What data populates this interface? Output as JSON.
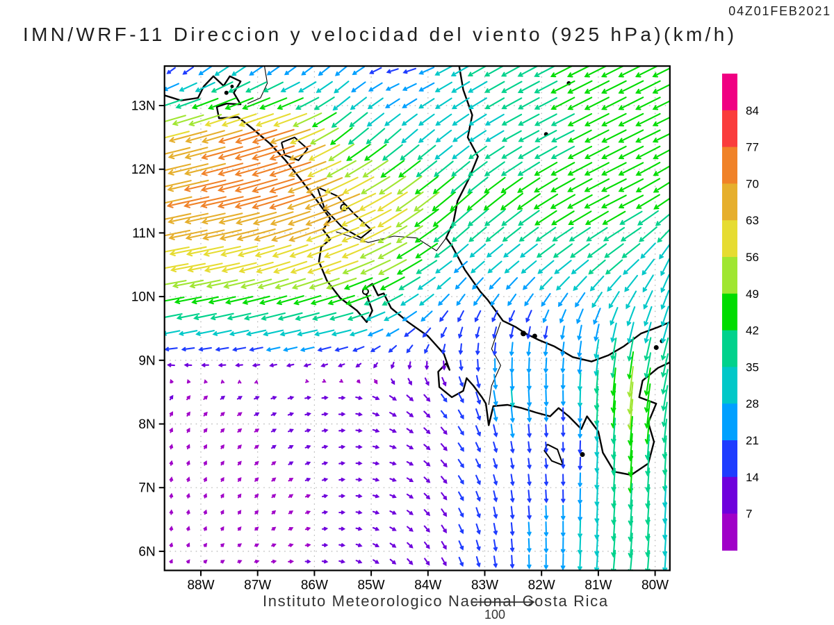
{
  "header": {
    "timestamp": "04Z01FEB2021",
    "title": "IMN/WRF-11 Direccion y velocidad del viento (925 hPa)(km/h)"
  },
  "footer": {
    "caption": "Instituto Meteorologico Nacional Costa Rica",
    "reference_vector_label": "100"
  },
  "chart_data": {
    "type": "vector-field-map",
    "title": "IMN/WRF-11 Direccion y velocidad del viento (925 hPa)(km/h)",
    "valid_time": "04Z01FEB2021",
    "units": "km/h",
    "lon_range": [
      -88.64,
      -79.74
    ],
    "lat_range": [
      5.7,
      13.62
    ],
    "lon_ticks": [
      {
        "lon": -88,
        "label": "88W"
      },
      {
        "lon": -87,
        "label": "87W"
      },
      {
        "lon": -86,
        "label": "86W"
      },
      {
        "lon": -85,
        "label": "85W"
      },
      {
        "lon": -84,
        "label": "84W"
      },
      {
        "lon": -83,
        "label": "83W"
      },
      {
        "lon": -82,
        "label": "82W"
      },
      {
        "lon": -81,
        "label": "81W"
      },
      {
        "lon": -80,
        "label": "80W"
      }
    ],
    "lat_ticks": [
      {
        "lat": 13,
        "label": "13N"
      },
      {
        "lat": 12,
        "label": "12N"
      },
      {
        "lat": 11,
        "label": "11N"
      },
      {
        "lat": 10,
        "label": "10N"
      },
      {
        "lat": 9,
        "label": "9N"
      },
      {
        "lat": 8,
        "label": "8N"
      },
      {
        "lat": 7,
        "label": "7N"
      },
      {
        "lat": 6,
        "label": "6N"
      }
    ],
    "speed_bins_km_h": [
      7,
      14,
      21,
      28,
      35,
      42,
      49,
      56,
      63,
      70,
      77,
      84
    ],
    "colorbar": {
      "orientation": "vertical",
      "boundary_labels": [
        "84",
        "77",
        "70",
        "63",
        "56",
        "49",
        "42",
        "35",
        "28",
        "21",
        "14",
        "7"
      ],
      "colors_top_to_bottom": [
        "#F00082",
        "#FA3C3C",
        "#F08228",
        "#E6AF2D",
        "#E6DC32",
        "#A0E632",
        "#00DC00",
        "#00D28C",
        "#00C8C8",
        "#00A0FF",
        "#1E3CFF",
        "#6E00DC",
        "#A000C8"
      ]
    },
    "wind_grid": {
      "lons": [
        -88.64,
        -87.5,
        -86.5,
        -85.5,
        -84.5,
        -83.5,
        -82.5,
        -81.5,
        -80.5,
        -79.74
      ],
      "lats": [
        13.62,
        12.5,
        11.5,
        10.5,
        9.5,
        8.5,
        7.5,
        6.5,
        5.7
      ],
      "u_km_h": [
        [
          -8,
          -22,
          -14,
          -18,
          -17,
          -30,
          -33,
          -40,
          -40,
          -40
        ],
        [
          -60,
          -68,
          -70,
          -35,
          -26,
          -24,
          -31,
          -37,
          -40,
          -39
        ],
        [
          -68,
          -70,
          -69,
          -60,
          -47,
          -34,
          -36,
          -40,
          -40,
          -36
        ],
        [
          -57,
          -58,
          -55,
          -55,
          -45,
          -21,
          -23,
          -28,
          -27,
          -12
        ],
        [
          -30,
          -32,
          -35,
          -33,
          -20,
          -6,
          -4,
          -4,
          -8,
          -10
        ],
        [
          4,
          6,
          8,
          9,
          10,
          8,
          2,
          0,
          -5,
          -8
        ],
        [
          1,
          4,
          6,
          8,
          9,
          9,
          3,
          0,
          -3,
          -2
        ],
        [
          0,
          3,
          5,
          8,
          9,
          7,
          2,
          0,
          -3,
          -2
        ],
        [
          2,
          5,
          7,
          8,
          8,
          6,
          1,
          -1,
          -4,
          -2
        ]
      ],
      "v_km_h": [
        [
          -8,
          -16,
          -12,
          -15,
          -3,
          -17,
          -18,
          -20,
          -20,
          -20
        ],
        [
          -15,
          -20,
          -22,
          -28,
          -23,
          -18,
          -17,
          -19,
          -20,
          -19
        ],
        [
          -15,
          -16,
          -22,
          -25,
          -32,
          -30,
          -27,
          -22,
          -20,
          -25
        ],
        [
          -10,
          -13,
          -18,
          -20,
          -25,
          -18,
          -19,
          -22,
          -23,
          -27
        ],
        [
          -6,
          -7,
          -8,
          -8,
          -12,
          -17,
          -17,
          -21,
          -32,
          -33
        ],
        [
          6,
          4,
          2,
          0,
          -8,
          -13,
          -30,
          -24,
          -55,
          -40
        ],
        [
          6,
          5,
          4,
          1,
          -3,
          -12,
          -16,
          -13,
          -44,
          -35
        ],
        [
          6,
          5,
          4,
          0,
          -5,
          -13,
          -20,
          -25,
          -42,
          -33
        ],
        [
          4,
          2,
          0,
          -2,
          -8,
          -13,
          -20,
          -26,
          -40,
          -32
        ]
      ]
    },
    "geography": {
      "coastlines": [
        [
          [
            -88.64,
            13.16
          ],
          [
            -88.35,
            13.08
          ],
          [
            -88.05,
            13.12
          ],
          [
            -87.95,
            13.3
          ],
          [
            -87.78,
            13.46
          ],
          [
            -87.6,
            13.31
          ],
          [
            -87.49,
            13.46
          ],
          [
            -87.3,
            13.38
          ],
          [
            -87.42,
            13.2
          ],
          [
            -87.3,
            13.02
          ],
          [
            -87.55,
            13.03
          ],
          [
            -87.72,
            12.98
          ],
          [
            -87.68,
            12.8
          ],
          [
            -87.35,
            12.82
          ],
          [
            -87.12,
            12.66
          ],
          [
            -86.78,
            12.4
          ],
          [
            -86.52,
            12.15
          ],
          [
            -86.25,
            11.85
          ],
          [
            -85.95,
            11.5
          ],
          [
            -85.72,
            11.22
          ],
          [
            -85.85,
            11.05
          ],
          [
            -85.72,
            10.9
          ],
          [
            -85.88,
            10.78
          ],
          [
            -85.92,
            10.55
          ],
          [
            -85.78,
            10.25
          ],
          [
            -85.55,
            9.98
          ],
          [
            -85.25,
            9.78
          ],
          [
            -85.08,
            9.6
          ],
          [
            -84.98,
            9.78
          ],
          [
            -85.05,
            9.95
          ],
          [
            -85.12,
            10.12
          ],
          [
            -84.98,
            10.2
          ],
          [
            -84.88,
            10.02
          ],
          [
            -84.78,
            10.05
          ],
          [
            -84.65,
            9.82
          ],
          [
            -84.35,
            9.6
          ],
          [
            -84.0,
            9.38
          ],
          [
            -83.72,
            9.1
          ],
          [
            -83.62,
            8.85
          ],
          [
            -83.68,
            8.95
          ],
          [
            -83.82,
            8.82
          ],
          [
            -83.8,
            8.58
          ],
          [
            -83.58,
            8.42
          ],
          [
            -83.38,
            8.52
          ],
          [
            -83.32,
            8.72
          ],
          [
            -83.2,
            8.6
          ],
          [
            -83.05,
            8.42
          ],
          [
            -82.98,
            8.32
          ],
          [
            -82.93,
            7.98
          ],
          [
            -82.85,
            8.28
          ],
          [
            -82.6,
            8.3
          ],
          [
            -82.35,
            8.25
          ],
          [
            -82.1,
            8.18
          ],
          [
            -81.85,
            8.12
          ],
          [
            -81.7,
            8.25
          ],
          [
            -81.52,
            8.12
          ],
          [
            -81.3,
            7.92
          ],
          [
            -81.2,
            8.12
          ],
          [
            -81.0,
            7.88
          ],
          [
            -80.92,
            7.55
          ],
          [
            -80.72,
            7.25
          ],
          [
            -80.42,
            7.2
          ],
          [
            -80.12,
            7.38
          ],
          [
            -80.02,
            7.72
          ],
          [
            -80.12,
            8.02
          ],
          [
            -79.98,
            8.32
          ],
          [
            -80.28,
            8.42
          ],
          [
            -80.22,
            8.68
          ],
          [
            -79.95,
            8.88
          ],
          [
            -79.78,
            8.95
          ],
          [
            -79.74,
            8.97
          ]
        ],
        [
          [
            -83.45,
            13.62
          ],
          [
            -83.38,
            13.25
          ],
          [
            -83.22,
            12.85
          ],
          [
            -83.3,
            12.5
          ],
          [
            -83.12,
            12.2
          ],
          [
            -83.28,
            11.85
          ],
          [
            -83.48,
            11.5
          ],
          [
            -83.55,
            11.18
          ],
          [
            -83.68,
            10.92
          ],
          [
            -83.58,
            10.8
          ],
          [
            -83.35,
            10.42
          ],
          [
            -83.08,
            10.08
          ],
          [
            -82.95,
            9.95
          ],
          [
            -82.68,
            9.62
          ],
          [
            -82.45,
            9.52
          ],
          [
            -82.28,
            9.42
          ],
          [
            -82.05,
            9.32
          ],
          [
            -81.78,
            9.22
          ],
          [
            -81.45,
            9.05
          ],
          [
            -81.12,
            8.98
          ],
          [
            -80.82,
            9.08
          ],
          [
            -80.55,
            9.22
          ],
          [
            -80.25,
            9.42
          ],
          [
            -79.95,
            9.52
          ],
          [
            -79.74,
            9.6
          ]
        ]
      ],
      "lakes": [
        [
          [
            -86.58,
            12.42
          ],
          [
            -86.35,
            12.5
          ],
          [
            -86.12,
            12.32
          ],
          [
            -86.28,
            12.14
          ],
          [
            -86.52,
            12.22
          ],
          [
            -86.58,
            12.42
          ]
        ],
        [
          [
            -85.95,
            11.72
          ],
          [
            -85.6,
            11.58
          ],
          [
            -85.3,
            11.3
          ],
          [
            -85.0,
            11.05
          ],
          [
            -85.18,
            10.92
          ],
          [
            -85.5,
            11.08
          ],
          [
            -85.82,
            11.38
          ],
          [
            -85.95,
            11.72
          ]
        ]
      ],
      "borders": [
        [
          [
            -86.88,
            13.62
          ],
          [
            -86.83,
            13.35
          ],
          [
            -86.95,
            13.12
          ],
          [
            -87.18,
            13.03
          ]
        ],
        [
          [
            -85.62,
            11.02
          ],
          [
            -85.05,
            10.85
          ],
          [
            -84.6,
            10.95
          ],
          [
            -84.2,
            10.92
          ],
          [
            -83.85,
            10.72
          ],
          [
            -83.68,
            10.92
          ]
        ],
        [
          [
            -82.72,
            9.6
          ],
          [
            -82.88,
            9.18
          ],
          [
            -82.72,
            8.92
          ],
          [
            -82.88,
            8.6
          ],
          [
            -82.93,
            8.3
          ]
        ]
      ],
      "island_polys": [
        [
          [
            -81.9,
            7.68
          ],
          [
            -81.72,
            7.6
          ],
          [
            -81.62,
            7.35
          ],
          [
            -81.82,
            7.42
          ],
          [
            -81.95,
            7.58
          ],
          [
            -81.9,
            7.68
          ]
        ]
      ],
      "island_dots": [
        {
          "lon": -85.48,
          "lat": 11.4,
          "r": 4.5
        },
        {
          "lon": -85.1,
          "lat": 10.08,
          "r": 4
        },
        {
          "lon": -81.28,
          "lat": 7.52,
          "r": 3
        },
        {
          "lon": -82.32,
          "lat": 9.42,
          "r": 3.5
        },
        {
          "lon": -82.12,
          "lat": 9.38,
          "r": 3
        },
        {
          "lon": -81.92,
          "lat": 12.55,
          "r": 2.5
        },
        {
          "lon": -81.52,
          "lat": 13.35,
          "r": 2.5
        },
        {
          "lon": -87.55,
          "lat": 13.2,
          "r": 2.5
        },
        {
          "lon": -87.45,
          "lat": 13.3,
          "r": 2
        },
        {
          "lon": -79.98,
          "lat": 9.2,
          "r": 3
        },
        {
          "lon": -79.88,
          "lat": 9.3,
          "r": 2.5
        }
      ]
    }
  }
}
